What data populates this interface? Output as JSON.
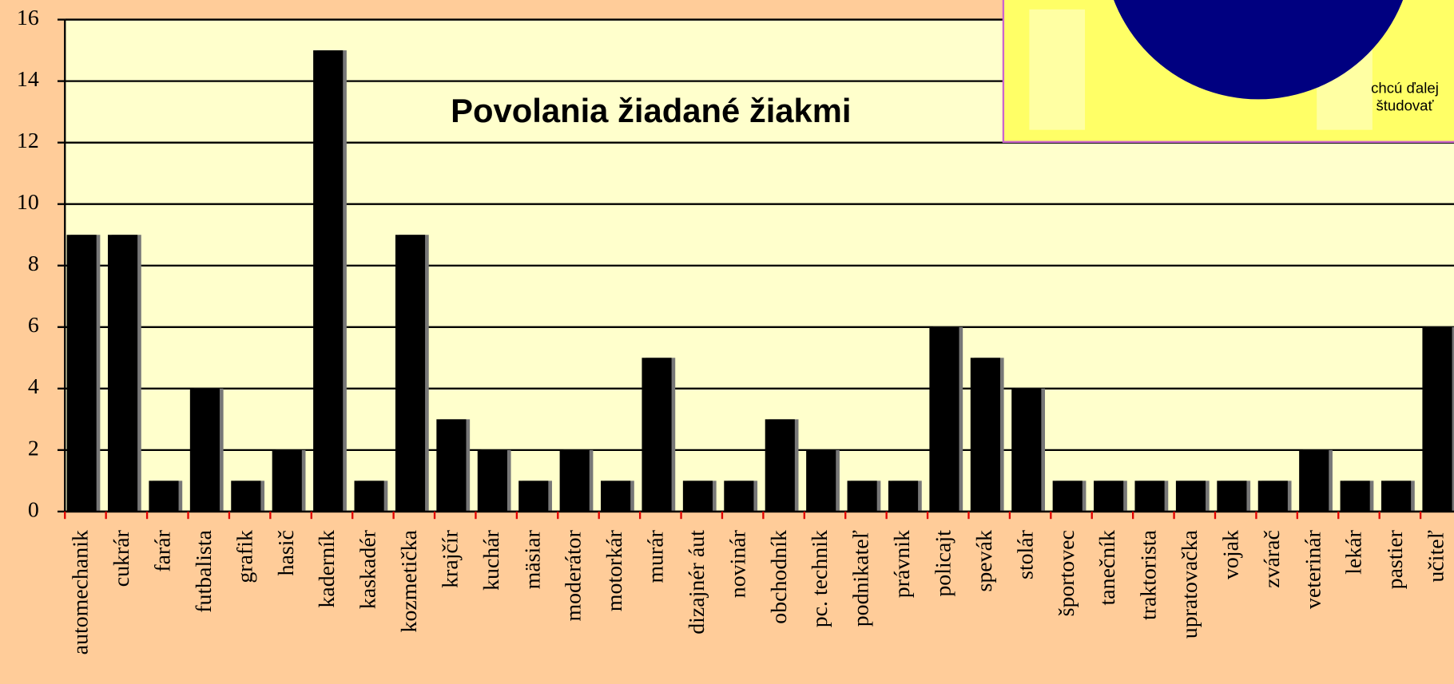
{
  "chart_data": {
    "type": "bar",
    "title": "Povolania žiadané žiakmi",
    "categories": [
      "automechanik",
      "cukrár",
      "farár",
      "futbalista",
      "grafik",
      "hasič",
      "kaderník",
      "kaskadér",
      "kozmetička",
      "krajčír",
      "kuchár",
      "mäsiar",
      "moderátor",
      "motorkár",
      "murár",
      "dizajnér áut",
      "novinár",
      "obchodník",
      "pc. technik",
      "podnikateľ",
      "právnik",
      "policajt",
      "spevák",
      "stolár",
      "športovec",
      "tanečník",
      "traktorista",
      "upratovačka",
      "vojak",
      "zvárač",
      "veterinár",
      "lekár",
      "pastier",
      "učiteľ"
    ],
    "values": [
      9,
      9,
      1,
      4,
      1,
      2,
      15,
      1,
      9,
      3,
      2,
      1,
      2,
      1,
      5,
      1,
      1,
      3,
      2,
      1,
      1,
      6,
      5,
      4,
      1,
      1,
      1,
      1,
      1,
      1,
      2,
      1,
      1,
      6
    ],
    "color": "#000000",
    "ylim": [
      0,
      16
    ],
    "yticks": [
      0,
      2,
      4,
      6,
      8,
      10,
      12,
      14,
      16
    ],
    "grid": true
  },
  "inset": {
    "label": "chcú ďalej študovať"
  }
}
